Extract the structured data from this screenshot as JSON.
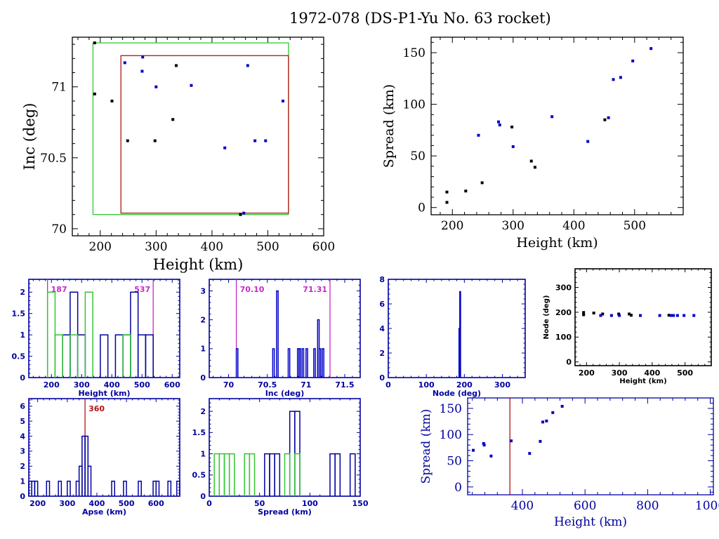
{
  "title": "1972-078 (DS-P1-Yu No. 63 rocket)",
  "colors": {
    "blue": "#0000a0",
    "bright_blue": "#0000c8",
    "green": "#32c832",
    "red": "#b41414",
    "magenta": "#c828c8",
    "black": "#000000"
  },
  "chart_data": [
    {
      "id": "inc-vs-height",
      "type": "scatter",
      "title": "",
      "xlabel": "Height (km)",
      "ylabel": "Inc (deg)",
      "xlim": [
        150,
        600
      ],
      "ylim": [
        69.95,
        71.35
      ],
      "xticks": [
        200,
        300,
        400,
        500,
        600
      ],
      "yticks": [
        70,
        70.5,
        71
      ],
      "ytick_labels": [
        "70",
        "70.5",
        "71"
      ],
      "boxes": [
        {
          "name": "green-box",
          "color": "green",
          "x": [
            187,
            537
          ],
          "y": [
            70.1,
            71.31
          ]
        },
        {
          "name": "red-box",
          "color": "red",
          "x": [
            237,
            537
          ],
          "y": [
            70.11,
            71.22
          ]
        }
      ],
      "series": [
        {
          "name": "black",
          "color": "black",
          "points": [
            [
              190,
              71.31
            ],
            [
              190,
              70.95
            ],
            [
              221,
              70.9
            ],
            [
              249,
              70.62
            ],
            [
              298,
              70.62
            ],
            [
              330,
              70.77
            ],
            [
              336,
              71.15
            ],
            [
              451,
              70.1
            ]
          ]
        },
        {
          "name": "blue",
          "color": "bright_blue",
          "points": [
            [
              244,
              71.17
            ],
            [
              276,
              71.21
            ],
            [
              275,
              71.11
            ],
            [
              300,
              71.0
            ],
            [
              363,
              71.01
            ],
            [
              423,
              70.57
            ],
            [
              457,
              70.11
            ],
            [
              464,
              71.15
            ],
            [
              477,
              70.62
            ],
            [
              496,
              70.62
            ],
            [
              527,
              70.9
            ]
          ]
        }
      ]
    },
    {
      "id": "spread-vs-height",
      "type": "scatter",
      "xlabel": "Height (km)",
      "ylabel": "Spread (km)",
      "xlim": [
        165,
        580
      ],
      "ylim": [
        -7,
        165
      ],
      "xticks": [
        200,
        300,
        400,
        500
      ],
      "yticks": [
        0,
        50,
        100,
        150
      ],
      "series": [
        {
          "name": "black",
          "color": "black",
          "points": [
            [
              191,
              15
            ],
            [
              191,
              5
            ],
            [
              222,
              16
            ],
            [
              249,
              24
            ],
            [
              298,
              78
            ],
            [
              330,
              45
            ],
            [
              336,
              39
            ],
            [
              451,
              85
            ]
          ]
        },
        {
          "name": "blue",
          "color": "bright_blue",
          "points": [
            [
              243,
              70
            ],
            [
              276,
              83
            ],
            [
              278,
              80
            ],
            [
              300,
              59
            ],
            [
              364,
              88
            ],
            [
              423,
              64
            ],
            [
              457,
              87
            ],
            [
              465,
              124
            ],
            [
              477,
              126
            ],
            [
              497,
              142
            ],
            [
              527,
              154
            ]
          ]
        }
      ]
    },
    {
      "id": "height-histogram",
      "type": "bar",
      "xlabel": "Height (km)",
      "ylabel": "",
      "xlim": [
        125,
        625
      ],
      "ylim": [
        0,
        2.3
      ],
      "xticks": [
        200,
        300,
        400,
        500,
        600
      ],
      "yticks": [
        0,
        0.5,
        1,
        1.5,
        2
      ],
      "ytick_labels": [
        "0",
        "0.5",
        "1",
        "1.5",
        "2"
      ],
      "vlines": [
        {
          "x": 187,
          "label": "187",
          "color": "magenta",
          "label_side": "right"
        },
        {
          "x": 537,
          "label": "537",
          "color": "magenta",
          "label_side": "left"
        }
      ],
      "series": [
        {
          "name": "blue",
          "color": "blue",
          "bin_width": 25,
          "bins": [
            [
              237,
              1
            ],
            [
              262,
              2
            ],
            [
              287,
              1
            ],
            [
              362,
              1
            ],
            [
              412,
              1
            ],
            [
              437,
              1
            ],
            [
              462,
              2
            ],
            [
              487,
              1
            ],
            [
              512,
              1
            ]
          ]
        },
        {
          "name": "green",
          "color": "green",
          "bin_width": 25,
          "bins": [
            [
              187,
              2
            ],
            [
              212,
              1
            ],
            [
              262,
              1
            ],
            [
              312,
              2
            ],
            [
              437,
              1
            ]
          ]
        }
      ]
    },
    {
      "id": "inc-histogram",
      "type": "bar",
      "xlabel": "Inc (deg)",
      "ylabel": "",
      "xlim": [
        69.75,
        71.7
      ],
      "ylim": [
        0,
        3.4
      ],
      "xticks": [
        70,
        70.5,
        71,
        71.5
      ],
      "yticks": [
        0,
        1,
        2,
        3
      ],
      "xtick_labels": [
        "70",
        "70.5",
        "71",
        "71.5"
      ],
      "vlines": [
        {
          "x": 70.1,
          "label": "70.10",
          "color": "magenta",
          "label_side": "right"
        },
        {
          "x": 71.31,
          "label": "71.31",
          "color": "magenta",
          "label_side": "left"
        }
      ],
      "series": [
        {
          "name": "blue",
          "color": "bright_blue",
          "bin_width": 0.02,
          "bins": [
            [
              70.1,
              1
            ],
            [
              70.57,
              1
            ],
            [
              70.62,
              3
            ],
            [
              70.77,
              1
            ],
            [
              70.89,
              1
            ],
            [
              70.91,
              1
            ],
            [
              70.95,
              1
            ],
            [
              71.0,
              1
            ],
            [
              71.1,
              1
            ],
            [
              71.15,
              2
            ],
            [
              71.17,
              1
            ],
            [
              71.21,
              1
            ]
          ]
        }
      ]
    },
    {
      "id": "node-histogram",
      "type": "bar",
      "xlabel": "Node (deg)",
      "ylabel": "",
      "xlim": [
        0,
        360
      ],
      "ylim": [
        0,
        8
      ],
      "xticks": [
        0,
        100,
        200,
        300
      ],
      "yticks": [
        0,
        2,
        4,
        6,
        8
      ],
      "series": [
        {
          "name": "blue",
          "color": "bright_blue",
          "bin_width": 2,
          "bins": [
            [
              186,
              4
            ],
            [
              188,
              7
            ]
          ]
        }
      ]
    },
    {
      "id": "node-vs-height",
      "type": "scatter",
      "xlabel": "Height (km)",
      "ylabel": "Node (deg)",
      "xlim": [
        165,
        580
      ],
      "ylim": [
        -15,
        375
      ],
      "xticks": [
        200,
        300,
        400,
        500
      ],
      "yticks": [
        0,
        100,
        200,
        300
      ],
      "series": [
        {
          "name": "black",
          "color": "black",
          "points": [
            [
              191,
              199
            ],
            [
              191,
              190
            ],
            [
              222,
              197
            ],
            [
              249,
              193
            ],
            [
              298,
              193
            ],
            [
              330,
              193
            ],
            [
              336,
              188
            ],
            [
              451,
              188
            ]
          ]
        },
        {
          "name": "blue",
          "color": "bright_blue",
          "points": [
            [
              243,
              187
            ],
            [
              276,
              187
            ],
            [
              300,
              187
            ],
            [
              364,
              187
            ],
            [
              423,
              187
            ],
            [
              457,
              187
            ],
            [
              465,
              187
            ],
            [
              477,
              187
            ],
            [
              497,
              187
            ],
            [
              527,
              187
            ]
          ]
        }
      ]
    },
    {
      "id": "apse-histogram",
      "type": "bar",
      "xlabel": "Apse (km)",
      "ylabel": "",
      "xlim": [
        170,
        680
      ],
      "ylim": [
        0,
        6.5
      ],
      "xticks": [
        200,
        300,
        400,
        500,
        600
      ],
      "yticks": [
        0,
        1,
        2,
        3,
        4,
        5,
        6
      ],
      "xtick_labels": [
        "200",
        "300",
        "400",
        "500",
        "600"
      ],
      "vlines": [
        {
          "x": 360,
          "label": "360",
          "color": "red",
          "label_side": "right"
        }
      ],
      "series": [
        {
          "name": "blue",
          "color": "blue",
          "bin_width": 10,
          "bins": [
            [
              170,
              1
            ],
            [
              180,
              1
            ],
            [
              190,
              1
            ],
            [
              230,
              1
            ],
            [
              270,
              1
            ],
            [
              300,
              1
            ],
            [
              330,
              1
            ],
            [
              340,
              2
            ],
            [
              350,
              4
            ],
            [
              360,
              4
            ],
            [
              370,
              2
            ],
            [
              450,
              1
            ],
            [
              490,
              1
            ],
            [
              540,
              1
            ],
            [
              590,
              1
            ],
            [
              600,
              1
            ],
            [
              640,
              1
            ],
            [
              670,
              1
            ]
          ]
        }
      ]
    },
    {
      "id": "spread-histogram",
      "type": "bar",
      "xlabel": "Spread (km)",
      "ylabel": "",
      "xlim": [
        0,
        150
      ],
      "ylim": [
        0,
        2.3
      ],
      "xticks": [
        0,
        50,
        100,
        150
      ],
      "yticks": [
        0,
        0.5,
        1,
        1.5,
        2
      ],
      "ytick_labels": [
        "0",
        "0.5",
        "1",
        "1.5",
        "2"
      ],
      "series": [
        {
          "name": "blue",
          "color": "blue",
          "bin_width": 5,
          "bins": [
            [
              55,
              1
            ],
            [
              60,
              1
            ],
            [
              65,
              1
            ],
            [
              80,
              2
            ],
            [
              85,
              2
            ],
            [
              120,
              1
            ],
            [
              125,
              1
            ],
            [
              140,
              1
            ]
          ]
        },
        {
          "name": "green",
          "color": "green",
          "bin_width": 5,
          "bins": [
            [
              5,
              1
            ],
            [
              10,
              1
            ],
            [
              15,
              1
            ],
            [
              20,
              1
            ],
            [
              35,
              1
            ],
            [
              40,
              1
            ],
            [
              75,
              1
            ],
            [
              85,
              1
            ]
          ]
        }
      ]
    },
    {
      "id": "spread-vs-height-wide",
      "type": "scatter",
      "xlabel": "Height (km)",
      "ylabel": "Spread (km)",
      "xlim": [
        225,
        1010
      ],
      "ylim": [
        -15,
        170
      ],
      "xticks": [
        400,
        600,
        800,
        1000
      ],
      "yticks": [
        0,
        50,
        100,
        150
      ],
      "vlines": [
        {
          "x": 360,
          "label": "",
          "color": "red"
        }
      ],
      "series": [
        {
          "name": "blue",
          "color": "bright_blue",
          "points": [
            [
              243,
              70
            ],
            [
              276,
              83
            ],
            [
              278,
              80
            ],
            [
              300,
              59
            ],
            [
              364,
              88
            ],
            [
              423,
              64
            ],
            [
              457,
              87
            ],
            [
              465,
              124
            ],
            [
              477,
              126
            ],
            [
              497,
              142
            ],
            [
              527,
              154
            ]
          ]
        }
      ]
    }
  ]
}
